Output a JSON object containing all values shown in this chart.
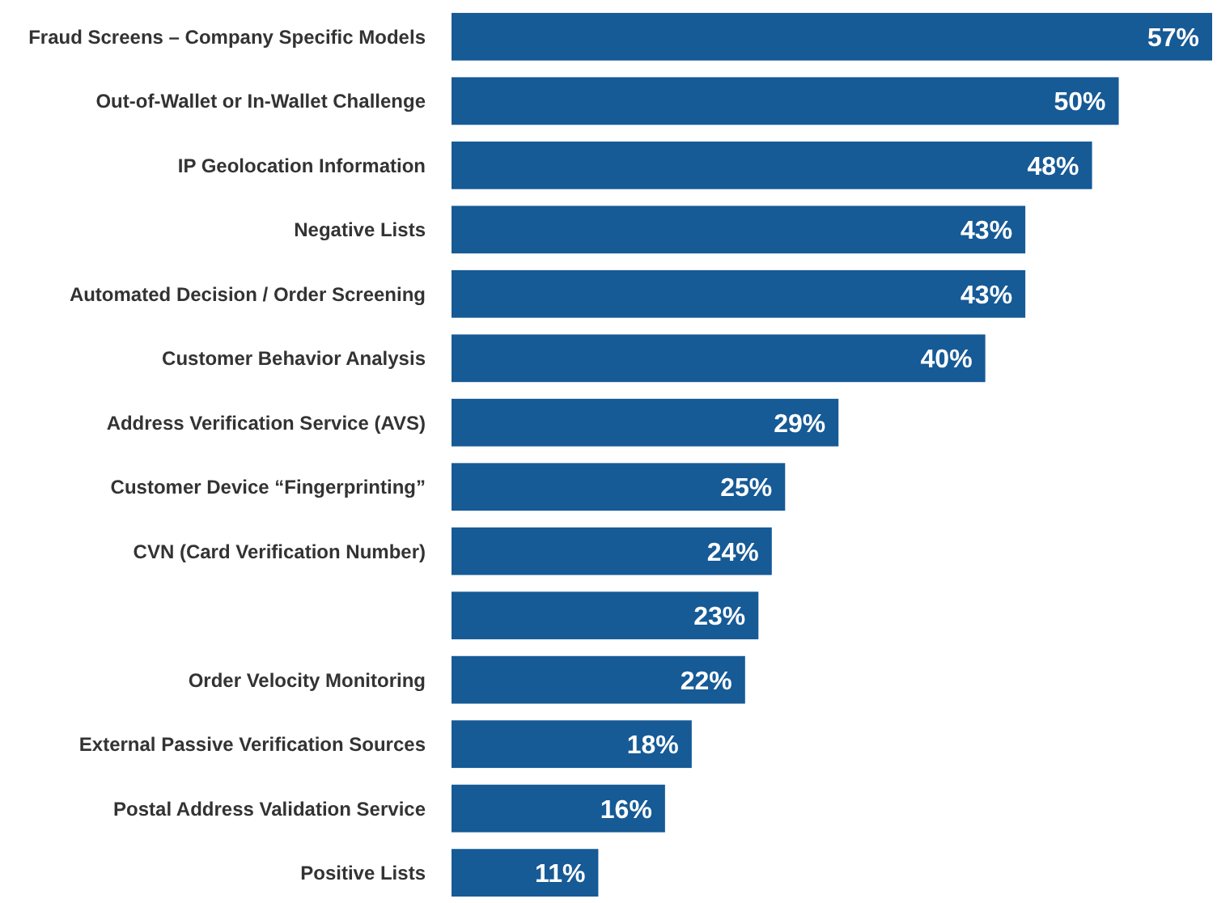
{
  "chart_data": {
    "type": "bar",
    "orientation": "horizontal",
    "categories": [
      "Fraud Screens – Company Specific Models",
      "Out-of-Wallet or In-Wallet Challenge",
      "IP Geolocation Information",
      "Negative Lists",
      "Automated Decision / Order Screening",
      "Customer Behavior Analysis",
      "Address Verification Service (AVS)",
      "Customer Device “Fingerprinting”",
      "CVN (Card Verification Number)",
      null,
      "Order Velocity Monitoring",
      "External Passive Verification Sources",
      "Postal Address Validation Service",
      "Positive Lists"
    ],
    "values": [
      57,
      50,
      48,
      43,
      43,
      40,
      29,
      25,
      24,
      23,
      22,
      18,
      16,
      11
    ],
    "value_labels": [
      "57%",
      "50%",
      "48%",
      "43%",
      "43%",
      "40%",
      "29%",
      "25%",
      "24%",
      "23%",
      "22%",
      "18%",
      "16%",
      "11%"
    ],
    "color": "#165a96"
  }
}
